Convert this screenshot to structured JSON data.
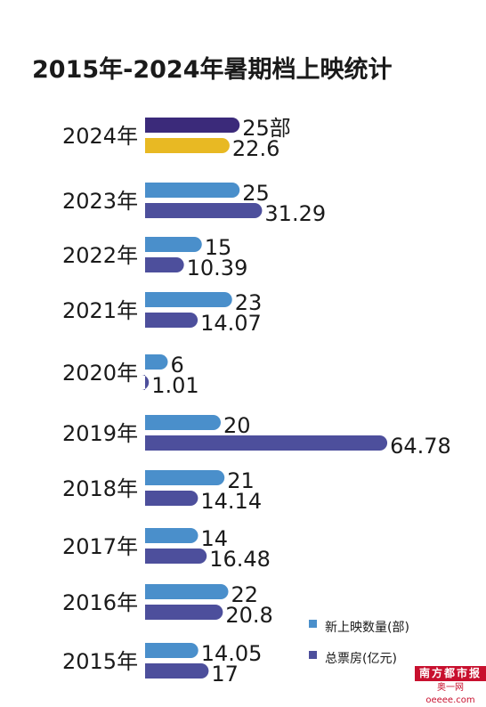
{
  "chart_data": {
    "type": "bar",
    "orientation": "horizontal",
    "title": "2015年-2024年暑期档上映统计",
    "categories": [
      "2024年",
      "2023年",
      "2022年",
      "2021年",
      "2020年",
      "2019年",
      "2018年",
      "2017年",
      "2016年",
      "2015年"
    ],
    "series": [
      {
        "name": "新上映数量(部)",
        "values": [
          25,
          25,
          15,
          23,
          6,
          20,
          21,
          14,
          22,
          14.05
        ],
        "labels": [
          "25部",
          "25",
          "15",
          "23",
          "6",
          "20",
          "21",
          "14",
          "22",
          "14.05"
        ]
      },
      {
        "name": "总票房(亿元)",
        "values": [
          22.6,
          31.29,
          10.39,
          14.07,
          1.01,
          64.78,
          14.14,
          16.48,
          20.8,
          17
        ],
        "labels": [
          "22.6",
          "31.29",
          "10.39",
          "14.07",
          "1.01",
          "64.78",
          "14.14",
          "16.48",
          "20.8",
          "17"
        ]
      }
    ],
    "highlight": {
      "category": "2024年",
      "colors": [
        "#3b2a7a",
        "#e8b923"
      ]
    },
    "colors": {
      "count": "#4a8fcb",
      "box_office": "#4d4f9c"
    },
    "legend_position": "bottom-right",
    "grid": false
  },
  "logo": {
    "main": "南方都市报",
    "sub": "奥一网oeeee.com"
  }
}
